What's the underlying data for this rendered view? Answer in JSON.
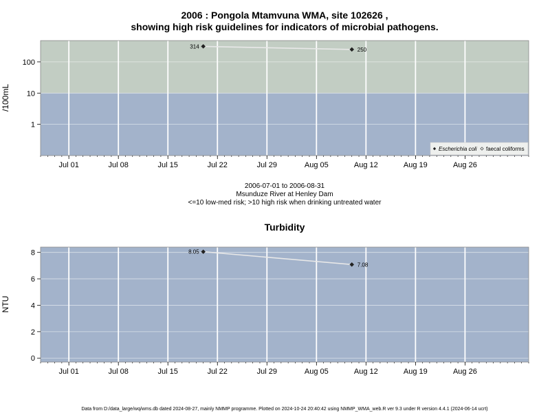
{
  "page": {
    "title_line1": "2006 : Pongola Mtamvuna WMA, site 102626 ,",
    "title_line2": "showing high risk guidelines for indicators of microbial pathogens.",
    "date_range": "2006-07-01 to 2006-08-31",
    "location": "Msunduze River at Henley Dam",
    "guideline_note": "<=10 low-med risk; >10 high risk when drinking untreated water",
    "footer": "Data from D:/data_large/wq/wms.db dated 2024-08-27, mainly NMMP programme. Plotted on 2024-10-24 20:40:42 using NMMP_WMA_web.R ver 9.3 under R version 4.4.1 (2024-06-14 ucrt)"
  },
  "chart_data": [
    {
      "type": "line",
      "title": "",
      "ylabel": "/100mL",
      "y_scale": "log",
      "ylim": [
        0.1,
        480
      ],
      "xlim": [
        "2006-06-27",
        "2006-09-04"
      ],
      "x_ticks": [
        {
          "date": "2006-07-01",
          "label": "Jul 01"
        },
        {
          "date": "2006-07-08",
          "label": "Jul 08"
        },
        {
          "date": "2006-07-15",
          "label": "Jul 15"
        },
        {
          "date": "2006-07-22",
          "label": "Jul 22"
        },
        {
          "date": "2006-07-29",
          "label": "Jul 29"
        },
        {
          "date": "2006-08-05",
          "label": "Aug 05"
        },
        {
          "date": "2006-08-12",
          "label": "Aug 12"
        },
        {
          "date": "2006-08-19",
          "label": "Aug 19"
        },
        {
          "date": "2006-08-26",
          "label": "Aug 26"
        }
      ],
      "y_ticks": [
        {
          "value": 1,
          "label": "1"
        },
        {
          "value": 10,
          "label": "10"
        },
        {
          "value": 100,
          "label": "100"
        }
      ],
      "bands": [
        {
          "from": 0.1,
          "to": 10,
          "color": "#a3b3cb"
        },
        {
          "from": 10,
          "to": 480,
          "color": "#c2cdc3"
        }
      ],
      "series": [
        {
          "name": "Escherichia coli",
          "color": "#222222",
          "points": [
            {
              "x": "2006-07-20",
              "y": 314,
              "label": "314"
            },
            {
              "x": "2006-08-10",
              "y": 250,
              "label": "250"
            }
          ]
        }
      ],
      "legend": {
        "placement": "bottom-right",
        "entries": [
          {
            "label": "Escherichia coli",
            "marker": "filled-diamond"
          },
          {
            "label": "faecal coliforms",
            "marker": "open-diamond"
          }
        ]
      },
      "grid": true
    },
    {
      "type": "line",
      "title": "Turbidity",
      "ylabel": "NTU",
      "y_scale": "linear",
      "ylim": [
        -0.3,
        8.4
      ],
      "xlim": [
        "2006-06-27",
        "2006-09-04"
      ],
      "x_ticks": [
        {
          "date": "2006-07-01",
          "label": "Jul 01"
        },
        {
          "date": "2006-07-08",
          "label": "Jul 08"
        },
        {
          "date": "2006-07-15",
          "label": "Jul 15"
        },
        {
          "date": "2006-07-22",
          "label": "Jul 22"
        },
        {
          "date": "2006-07-29",
          "label": "Jul 29"
        },
        {
          "date": "2006-08-05",
          "label": "Aug 05"
        },
        {
          "date": "2006-08-12",
          "label": "Aug 12"
        },
        {
          "date": "2006-08-19",
          "label": "Aug 19"
        },
        {
          "date": "2006-08-26",
          "label": "Aug 26"
        }
      ],
      "y_ticks": [
        {
          "value": 0,
          "label": "0"
        },
        {
          "value": 2,
          "label": "2"
        },
        {
          "value": 4,
          "label": "4"
        },
        {
          "value": 6,
          "label": "6"
        },
        {
          "value": 8,
          "label": "8"
        }
      ],
      "bands": [
        {
          "from": -0.3,
          "to": 8.4,
          "color": "#a3b3cb"
        }
      ],
      "series": [
        {
          "color": "#222222",
          "points": [
            {
              "x": "2006-07-20",
              "y": 8.05,
              "label": "8.05"
            },
            {
              "x": "2006-08-10",
              "y": 7.08,
              "label": "7.08"
            }
          ]
        }
      ],
      "grid": true
    }
  ]
}
